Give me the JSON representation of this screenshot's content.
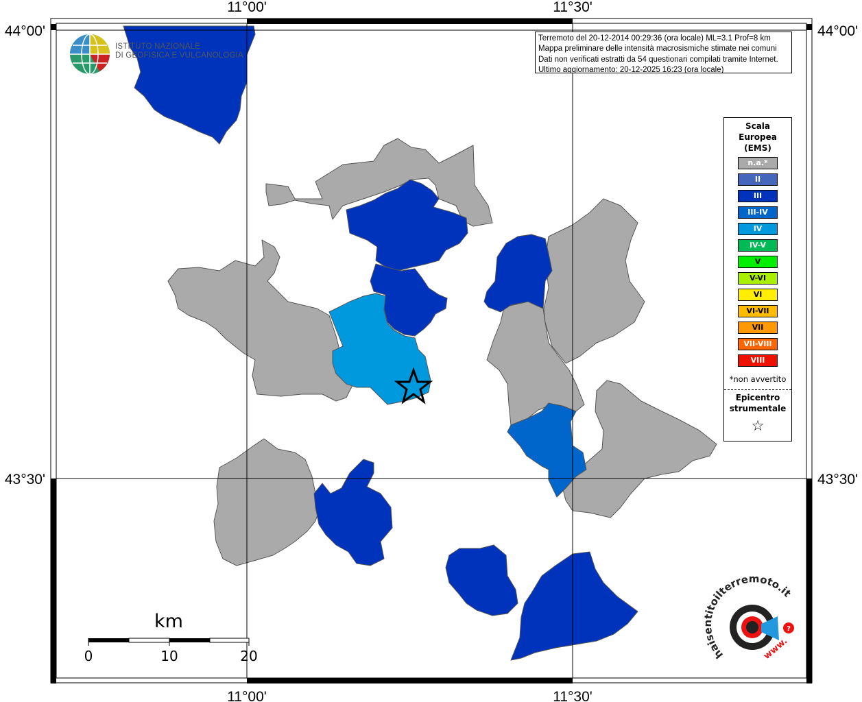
{
  "coords": {
    "top": [
      "11°00'",
      "11°30'"
    ],
    "bottom": [
      "11°00'",
      "11°30'"
    ],
    "left": [
      "44°00'",
      "43°30'"
    ],
    "right": [
      "44°00'",
      "43°30'"
    ]
  },
  "info": {
    "line1": "Terremoto del 20-12-2014 00:29:36 (ora locale) ML=3.1 Prof=8 km",
    "line2": "Mappa preliminare delle intensità macrosismiche stimate nei comuni",
    "line3": "Dati non verificati estratti da 54 questionari compilati tramite Internet.",
    "line4": "Ultimo aggiornamento: 20-12-2025 16:23 (ora locale)"
  },
  "logo": {
    "line1": "ISTITUTO NAZIONALE",
    "line2": "DI GEOFISICA E VULCANOLOGIA"
  },
  "legend": {
    "title1": "Scala",
    "title2": "Europea",
    "title3": "(EMS)",
    "items": [
      {
        "label": "n.a.*",
        "color": "#aaaaaa"
      },
      {
        "label": "II",
        "color": "#4466bb"
      },
      {
        "label": "III",
        "color": "#0033bb"
      },
      {
        "label": "III-IV",
        "color": "#0066cc"
      },
      {
        "label": "IV",
        "color": "#0099dd"
      },
      {
        "label": "IV-V",
        "color": "#00bb55"
      },
      {
        "label": "V",
        "color": "#00ee00"
      },
      {
        "label": "V-VI",
        "color": "#aaee00"
      },
      {
        "label": "VI",
        "color": "#ffee00"
      },
      {
        "label": "VI-VII",
        "color": "#ffbb00"
      },
      {
        "label": "VII",
        "color": "#ff9900"
      },
      {
        "label": "VII-VIII",
        "color": "#ff6600"
      },
      {
        "label": "VIII",
        "color": "#ee1100"
      }
    ],
    "note": "*non avvertito",
    "epi1": "Epicentro",
    "epi2": "strumentale",
    "star": "☆"
  },
  "scale": {
    "unit": "km",
    "ticks": [
      "0",
      "10",
      "20"
    ]
  },
  "watermark": {
    "text": "haisentitoilterremoto.it",
    "www": "www."
  }
}
